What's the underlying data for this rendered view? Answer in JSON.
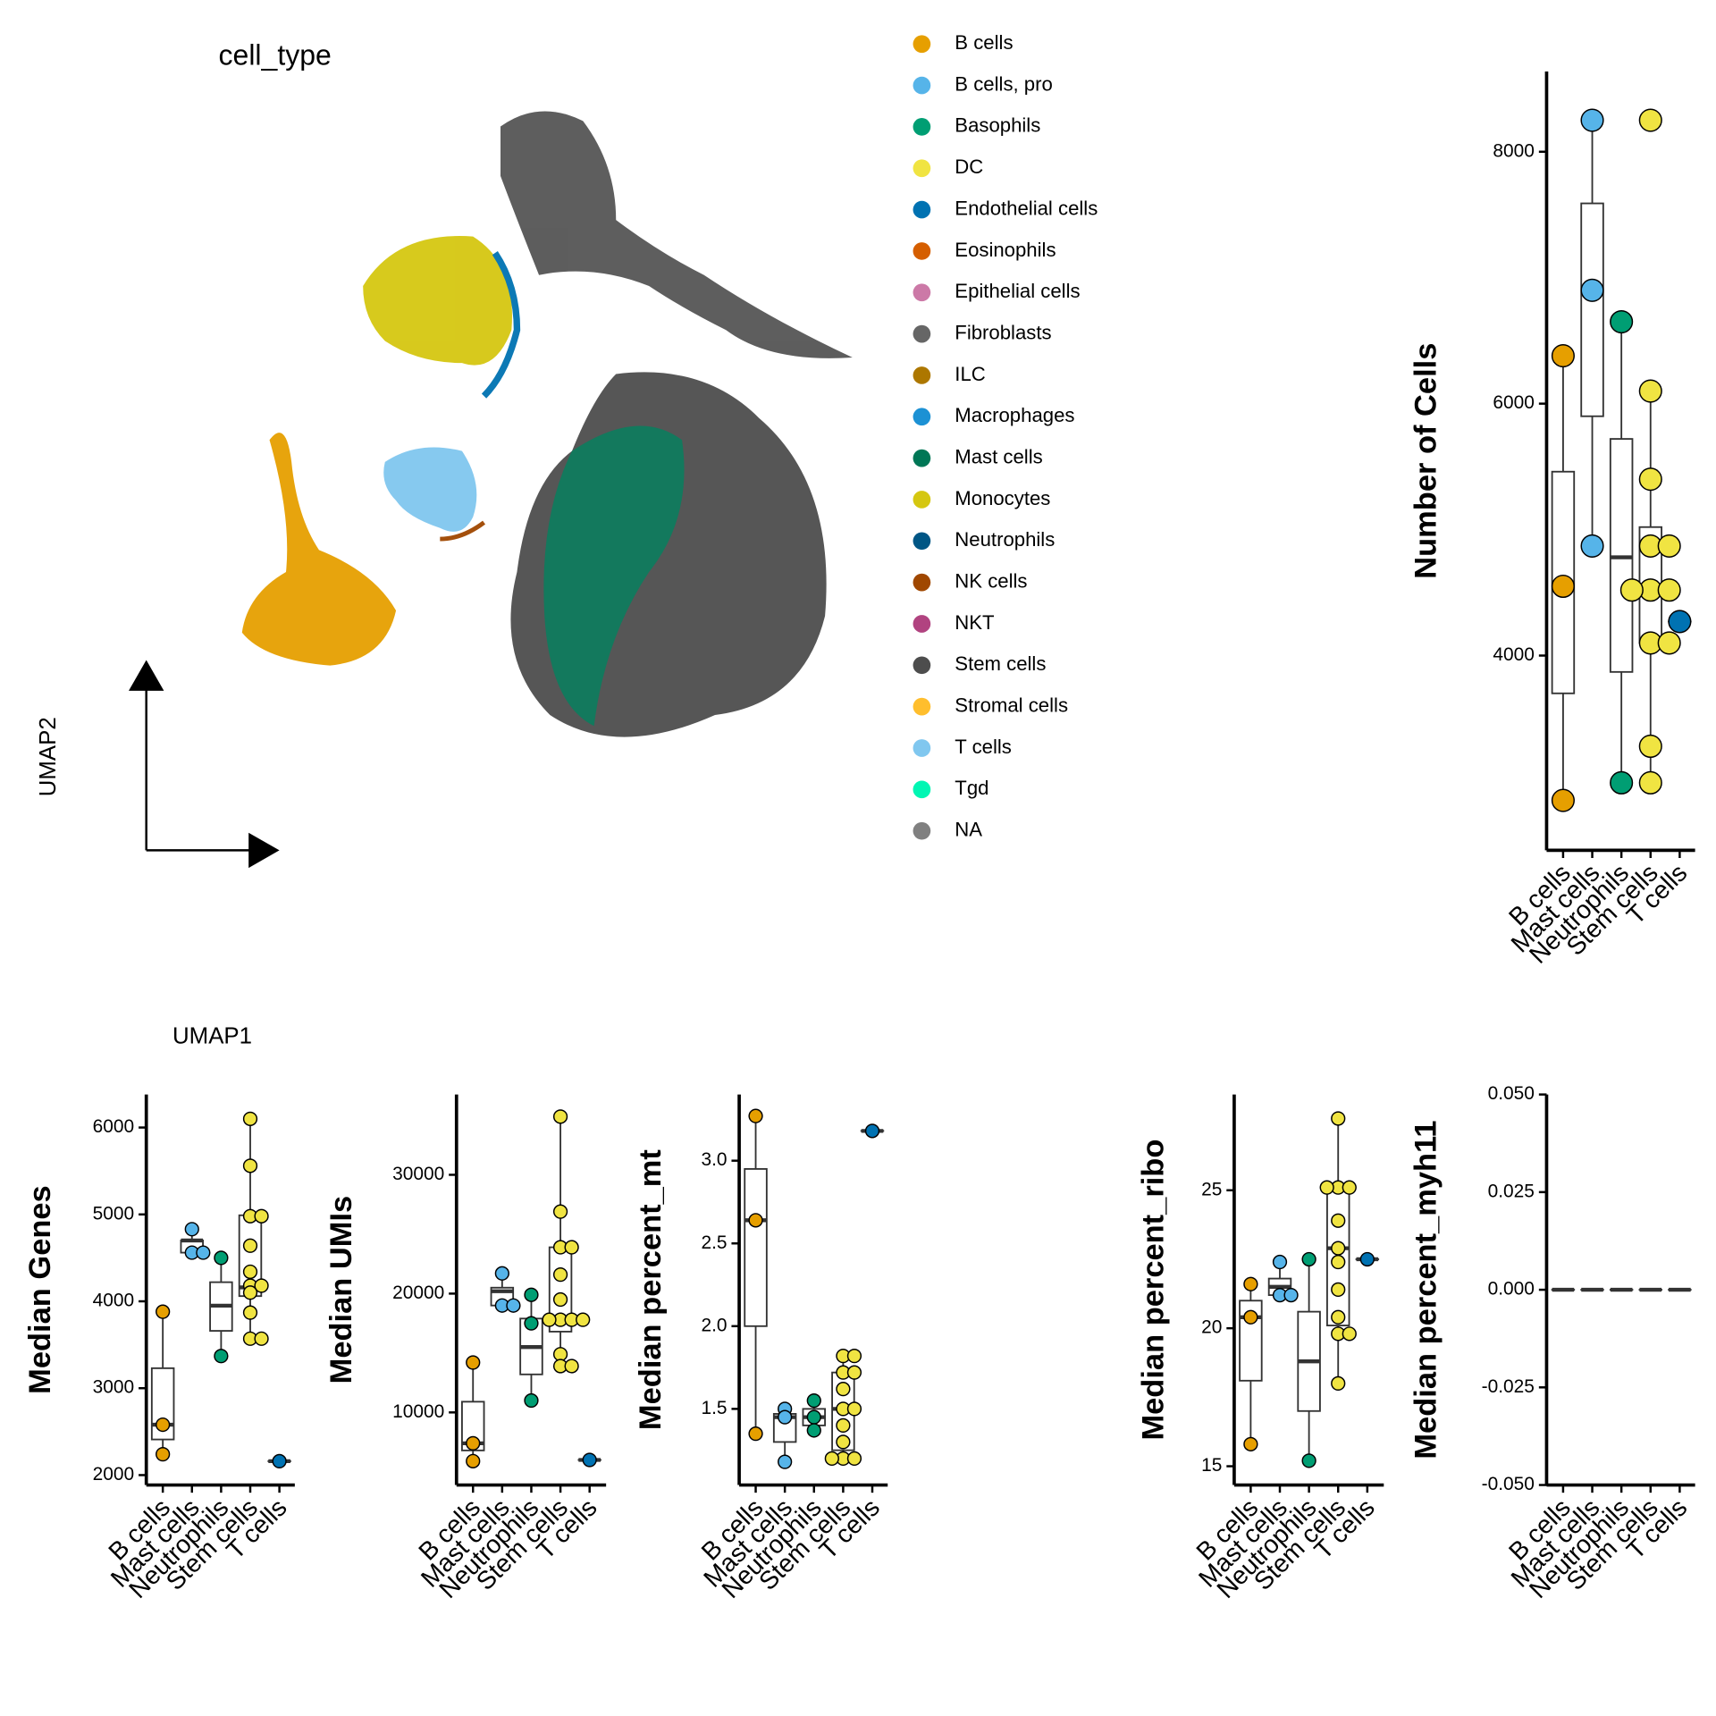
{
  "chart_data": [
    {
      "type": "umap",
      "title": "cell_type",
      "xlabel": "UMAP1",
      "ylabel": "UMAP2",
      "legend": [
        {
          "name": "B cells",
          "color": "#E69F00"
        },
        {
          "name": "B cells, pro",
          "color": "#56B4E9"
        },
        {
          "name": "Basophils",
          "color": "#009E73"
        },
        {
          "name": "DC",
          "color": "#F0E442"
        },
        {
          "name": "Endothelial cells",
          "color": "#0072B2"
        },
        {
          "name": "Eosinophils",
          "color": "#D55E00"
        },
        {
          "name": "Epithelial cells",
          "color": "#CC79A7"
        },
        {
          "name": "Fibroblasts",
          "color": "#666666"
        },
        {
          "name": "ILC",
          "color": "#AD7700"
        },
        {
          "name": "Macrophages",
          "color": "#1C91D4"
        },
        {
          "name": "Mast cells",
          "color": "#007756"
        },
        {
          "name": "Monocytes",
          "color": "#D5C711"
        },
        {
          "name": "Neutrophils",
          "color": "#005685"
        },
        {
          "name": "NK cells",
          "color": "#A04700"
        },
        {
          "name": "NKT",
          "color": "#B14380"
        },
        {
          "name": "Stem cells",
          "color": "#4D4D4D"
        },
        {
          "name": "Stromal cells",
          "color": "#FFBE2D"
        },
        {
          "name": "T cells",
          "color": "#80C7EF"
        },
        {
          "name": "Tgd",
          "color": "#00F6B3"
        },
        {
          "name": "NA",
          "color": "#808080"
        }
      ]
    },
    {
      "type": "box",
      "ylabel": "Number of Cells",
      "categories": [
        "B cells",
        "Mast cells",
        "Neutrophils",
        "Stem cells",
        "T cells"
      ],
      "ylim": [
        2454,
        8637
      ],
      "yticks": [
        4000,
        6000,
        8000
      ],
      "groups": [
        {
          "color": "#E69F00",
          "points": [
            6380,
            4550,
            2850
          ],
          "box": {
            "low": 2850,
            "q1": 3700,
            "median": 4550,
            "q3": 5460,
            "high": 6380
          }
        },
        {
          "color": "#56B4E9",
          "points": [
            8250,
            6900,
            4870
          ],
          "box": {
            "low": 4870,
            "q1": 5900,
            "median": 6900,
            "q3": 7590,
            "high": 8250
          }
        },
        {
          "color": "#009E73",
          "points": [
            6650,
            2990
          ],
          "box": {
            "low": 2990,
            "q1": 3870,
            "median": 4780,
            "q3": 5720,
            "high": 6650
          }
        },
        {
          "color": "#F0E442",
          "points": [
            8250,
            6100,
            5400,
            4870,
            4870,
            4520,
            4520,
            4520,
            4100,
            4100,
            3280,
            2990
          ],
          "box": {
            "low": 2990,
            "q1": 4100,
            "median": 4520,
            "q3": 5020,
            "high": 6100
          }
        },
        {
          "color": "#0072B2",
          "points": [
            4270
          ],
          "box": {
            "low": 4270,
            "q1": 4270,
            "median": 4270,
            "q3": 4270,
            "high": 4270
          }
        }
      ]
    },
    {
      "type": "box",
      "ylabel": "Median Genes",
      "categories": [
        "B cells",
        "Mast cells",
        "Neutrophils",
        "Stem cells",
        "T cells"
      ],
      "ylim": [
        1886,
        6380
      ],
      "yticks": [
        2000,
        3000,
        4000,
        5000,
        6000
      ],
      "groups": [
        {
          "color": "#E69F00",
          "points": [
            3880,
            2580,
            2240
          ],
          "box": {
            "low": 2240,
            "q1": 2410,
            "median": 2580,
            "q3": 3230,
            "high": 3880
          }
        },
        {
          "color": "#56B4E9",
          "points": [
            4830,
            4560,
            4560
          ],
          "box": {
            "low": 4560,
            "q1": 4560,
            "median": 4700,
            "q3": 4700,
            "high": 4830
          }
        },
        {
          "color": "#009E73",
          "points": [
            4500,
            3370
          ],
          "box": {
            "low": 3370,
            "q1": 3660,
            "median": 3950,
            "q3": 4220,
            "high": 4500
          }
        },
        {
          "color": "#F0E442",
          "points": [
            6100,
            5560,
            4980,
            4980,
            4640,
            4340,
            4180,
            4180,
            4100,
            3870,
            3570,
            3570
          ],
          "box": {
            "low": 3570,
            "q1": 4060,
            "median": 4160,
            "q3": 4990,
            "high": 6100
          }
        },
        {
          "color": "#0072B2",
          "points": [
            2160
          ],
          "box": {
            "low": 2160,
            "q1": 2160,
            "median": 2160,
            "q3": 2160,
            "high": 2160
          }
        }
      ]
    },
    {
      "type": "box",
      "ylabel": "Median UMIs",
      "categories": [
        "B cells",
        "Mast cells",
        "Neutrophils",
        "Stem cells",
        "T cells"
      ],
      "ylim": [
        3890,
        36760
      ],
      "yticks": [
        10000,
        20000,
        30000
      ],
      "groups": [
        {
          "color": "#E69F00",
          "points": [
            14200,
            7400,
            5900
          ],
          "box": {
            "low": 5900,
            "q1": 6800,
            "median": 7400,
            "q3": 10900,
            "high": 14200
          }
        },
        {
          "color": "#56B4E9",
          "points": [
            21700,
            19000,
            19000
          ],
          "box": {
            "low": 19000,
            "q1": 19000,
            "median": 20200,
            "q3": 20500,
            "high": 21700
          }
        },
        {
          "color": "#009E73",
          "points": [
            19900,
            17500,
            11000
          ],
          "box": {
            "low": 11000,
            "q1": 13200,
            "median": 15500,
            "q3": 17900,
            "high": 19900
          }
        },
        {
          "color": "#F0E442",
          "points": [
            34900,
            26900,
            23900,
            23900,
            21600,
            19500,
            17800,
            17800,
            17800,
            17800,
            14900,
            13900,
            13900
          ],
          "box": {
            "low": 13900,
            "q1": 16800,
            "median": 17800,
            "q3": 23900,
            "high": 34900
          }
        },
        {
          "color": "#0072B2",
          "points": [
            6000
          ],
          "box": {
            "low": 6000,
            "q1": 6000,
            "median": 6000,
            "q3": 6000,
            "high": 6000
          }
        }
      ]
    },
    {
      "type": "box",
      "ylabel": "Median percent_mt",
      "categories": [
        "B cells",
        "Mast cells",
        "Neutrophils",
        "Stem cells",
        "T cells"
      ],
      "ylim": [
        1.04,
        3.4
      ],
      "yticks": [
        1.5,
        {
          "value": 2,
          "label": "2.0"
        },
        2.5,
        {
          "value": 3,
          "label": "3.0"
        }
      ],
      "groups": [
        {
          "color": "#E69F00",
          "points": [
            3.27,
            2.64,
            1.35
          ],
          "box": {
            "low": 1.35,
            "q1": 2.0,
            "median": 2.64,
            "q3": 2.95,
            "high": 3.27
          }
        },
        {
          "color": "#56B4E9",
          "points": [
            1.5,
            1.45,
            1.18
          ],
          "box": {
            "low": 1.18,
            "q1": 1.3,
            "median": 1.45,
            "q3": 1.47,
            "high": 1.5
          }
        },
        {
          "color": "#009E73",
          "points": [
            1.55,
            1.45,
            1.37
          ],
          "box": {
            "low": 1.37,
            "q1": 1.4,
            "median": 1.45,
            "q3": 1.5,
            "high": 1.55
          }
        },
        {
          "color": "#F0E442",
          "points": [
            1.82,
            1.82,
            1.72,
            1.72,
            1.62,
            1.5,
            1.5,
            1.4,
            1.3,
            1.2,
            1.2,
            1.2
          ],
          "box": {
            "low": 1.2,
            "q1": 1.25,
            "median": 1.5,
            "q3": 1.72,
            "high": 1.82
          }
        },
        {
          "color": "#0072B2",
          "points": [
            3.18
          ],
          "box": {
            "low": 3.18,
            "q1": 3.18,
            "median": 3.18,
            "q3": 3.18,
            "high": 3.18
          }
        }
      ]
    },
    {
      "type": "box",
      "ylabel": "Median percent_ribo",
      "categories": [
        "B cells",
        "Mast cells",
        "Neutrophils",
        "Stem cells",
        "T cells"
      ],
      "ylim": [
        14.32,
        28.47
      ],
      "yticks": [
        15,
        20,
        25
      ],
      "groups": [
        {
          "color": "#E69F00",
          "points": [
            21.6,
            20.4,
            15.8
          ],
          "box": {
            "low": 15.8,
            "q1": 18.1,
            "median": 20.4,
            "q3": 21.0,
            "high": 21.6
          }
        },
        {
          "color": "#56B4E9",
          "points": [
            22.4,
            21.2,
            21.2
          ],
          "box": {
            "low": 21.2,
            "q1": 21.2,
            "median": 21.5,
            "q3": 21.8,
            "high": 22.4
          }
        },
        {
          "color": "#009E73",
          "points": [
            22.5,
            15.2
          ],
          "box": {
            "low": 15.2,
            "q1": 17.0,
            "median": 18.8,
            "q3": 20.6,
            "high": 22.5
          }
        },
        {
          "color": "#F0E442",
          "points": [
            27.6,
            25.1,
            25.1,
            25.1,
            23.9,
            22.9,
            22.4,
            21.4,
            20.4,
            19.8,
            19.8,
            18.0
          ],
          "box": {
            "low": 18.0,
            "q1": 20.1,
            "median": 22.9,
            "q3": 25.1,
            "high": 27.6
          }
        },
        {
          "color": "#0072B2",
          "points": [
            22.5
          ],
          "box": {
            "low": 22.5,
            "q1": 22.5,
            "median": 22.5,
            "q3": 22.5,
            "high": 22.5
          }
        }
      ]
    },
    {
      "type": "box",
      "ylabel": "Median percent_myh11",
      "categories": [
        "B cells",
        "Mast cells",
        "Neutrophils",
        "Stem cells",
        "T cells"
      ],
      "ylim": [
        -0.05,
        0.05
      ],
      "yticks": [
        {
          "value": -0.05,
          "label": "-0.050"
        },
        -0.025,
        {
          "value": 0,
          "label": "0.000"
        },
        0.025,
        {
          "value": 0.05,
          "label": "0.050"
        }
      ],
      "groups": [
        {
          "color": "#E69F00",
          "box": {
            "low": 0,
            "q1": 0,
            "median": 0,
            "q3": 0,
            "high": 0
          }
        },
        {
          "color": "#56B4E9",
          "box": {
            "low": 0,
            "q1": 0,
            "median": 0,
            "q3": 0,
            "high": 0
          }
        },
        {
          "color": "#009E73",
          "box": {
            "low": 0,
            "q1": 0,
            "median": 0,
            "q3": 0,
            "high": 0
          }
        },
        {
          "color": "#F0E442",
          "box": {
            "low": 0,
            "q1": 0,
            "median": 0,
            "q3": 0,
            "high": 0
          }
        },
        {
          "color": "#0072B2",
          "box": {
            "low": 0,
            "q1": 0,
            "median": 0,
            "q3": 0,
            "high": 0
          }
        }
      ]
    }
  ]
}
